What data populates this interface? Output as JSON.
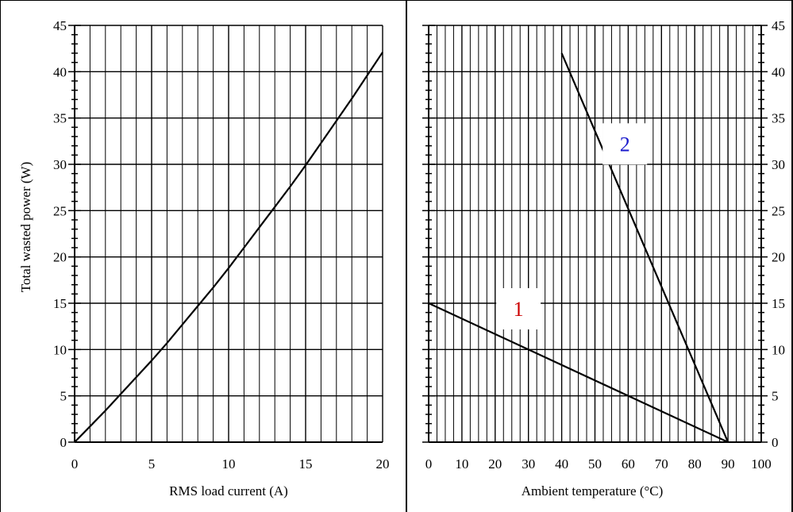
{
  "colors": {
    "line": "#000000",
    "grid": "#000000",
    "label_1": "#cc0000",
    "label_2": "#1a1acc",
    "background": "#ffffff"
  },
  "chart_data": [
    {
      "type": "line",
      "title": "",
      "xlabel": "RMS load current (A)",
      "ylabel": "Total wasted power (W)",
      "xlim": [
        0,
        20
      ],
      "ylim": [
        0,
        45
      ],
      "x_ticks": [
        "0",
        "5",
        "10",
        "15",
        "20"
      ],
      "y_ticks": [
        "0",
        "5",
        "10",
        "15",
        "20",
        "25",
        "30",
        "35",
        "40",
        "45"
      ],
      "y_axis_side": "left",
      "grid": true,
      "series": [
        {
          "x": [
            0,
            1,
            2,
            3,
            4,
            5,
            6,
            7,
            8,
            9,
            10,
            11,
            12,
            13,
            14,
            15,
            16,
            17,
            18,
            19,
            20
          ],
          "y": [
            0,
            1.7,
            3.4,
            5.2,
            7.0,
            8.8,
            10.7,
            12.7,
            14.7,
            16.7,
            18.8,
            21.0,
            23.2,
            25.4,
            27.6,
            29.9,
            32.3,
            34.7,
            37.1,
            39.6,
            42.1
          ]
        }
      ]
    },
    {
      "type": "line",
      "title": "",
      "xlabel": "Ambient temperature (°C)",
      "ylabel": "",
      "xlim": [
        0,
        100
      ],
      "ylim": [
        0,
        45
      ],
      "x_ticks": [
        "0",
        "10",
        "20",
        "30",
        "40",
        "50",
        "60",
        "70",
        "80",
        "90",
        "100"
      ],
      "y_ticks": [
        "0",
        "5",
        "10",
        "15",
        "20",
        "25",
        "30",
        "35",
        "40",
        "45"
      ],
      "y_axis_side": "right",
      "grid": true,
      "series": [
        {
          "name": "1",
          "x": [
            0,
            90
          ],
          "y": [
            15,
            0
          ]
        },
        {
          "name": "2",
          "x": [
            40,
            90
          ],
          "y": [
            42,
            0
          ]
        }
      ],
      "annotations": [
        {
          "text": "1",
          "x": 27,
          "y": 14.4,
          "color": "#cc0000"
        },
        {
          "text": "2",
          "x": 59,
          "y": 32.2,
          "color": "#1a1acc"
        }
      ]
    }
  ]
}
